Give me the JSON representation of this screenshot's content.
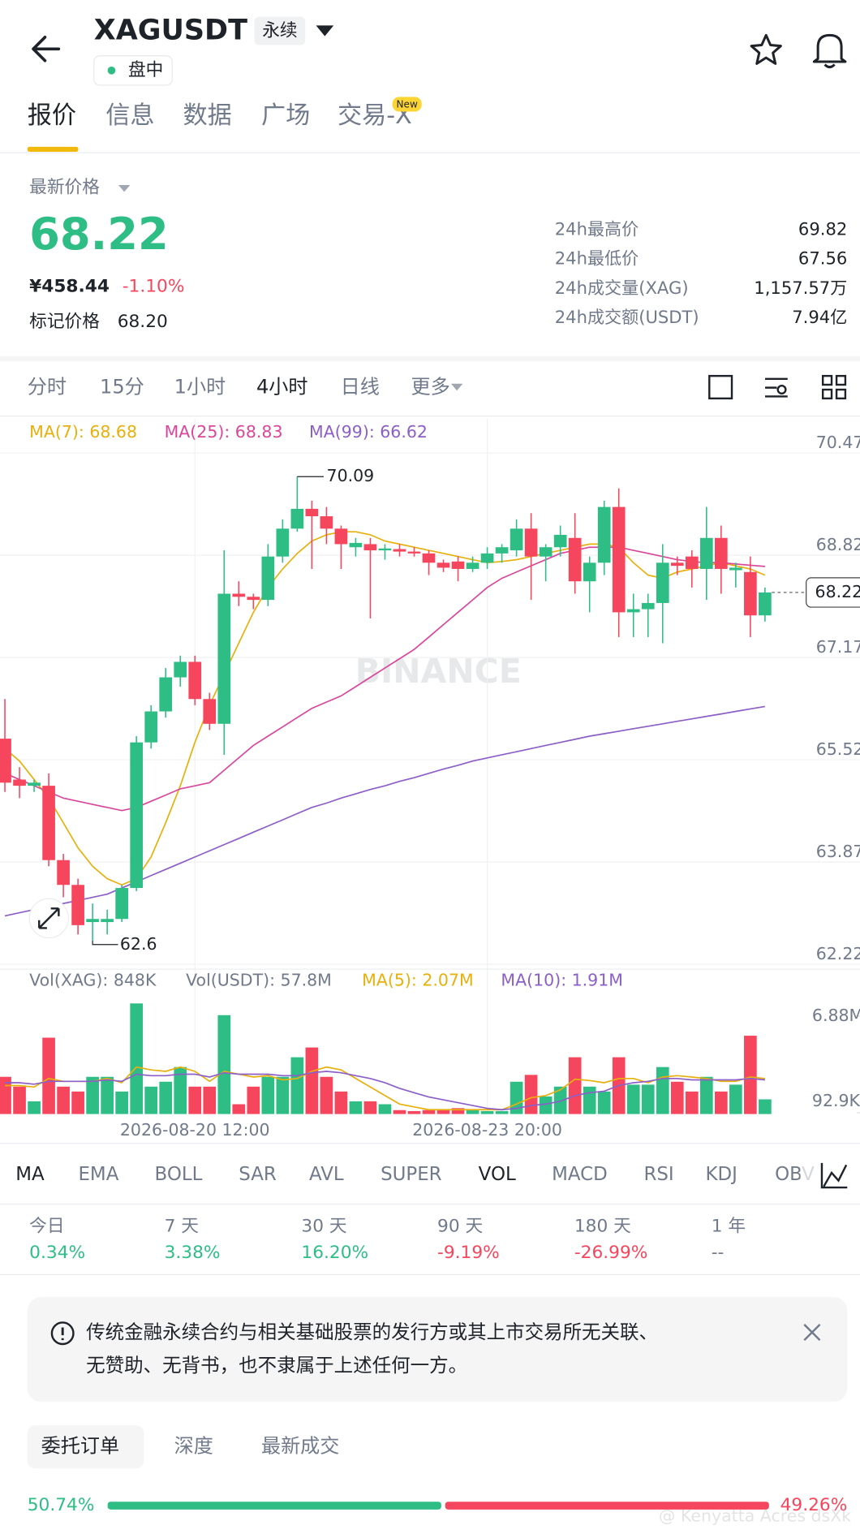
{
  "header": {
    "symbol": "XAGUSDT",
    "contract": "永续",
    "status": "盘中"
  },
  "tabs": {
    "items": [
      "报价",
      "信息",
      "数据",
      "广场",
      "交易-X"
    ],
    "active": 0,
    "badge": "New"
  },
  "price": {
    "label": "最新价格",
    "last": "68.22",
    "cny": "¥458.44",
    "change": "-1.10%",
    "mark_label": "标记价格",
    "mark": "68.20"
  },
  "stats": [
    {
      "label": "24h最高价",
      "value": "69.82"
    },
    {
      "label": "24h最低价",
      "value": "67.56"
    },
    {
      "label": "24h成交量(XAG)",
      "value": "1,157.57万"
    },
    {
      "label": "24h成交额(USDT)",
      "value": "7.94亿"
    }
  ],
  "intervals": {
    "items": [
      "分时",
      "15分",
      "1小时",
      "4小时",
      "日线",
      "更多"
    ],
    "active": 3
  },
  "chart_data": [
    {
      "type": "candlestick",
      "watermark": "BINANCE",
      "up_color": "#2ebd85",
      "down_color": "#f6465d",
      "ylim": [
        62.14,
        71.02
      ],
      "yticks": [
        70.47,
        68.82,
        67.17,
        65.52,
        63.87,
        62.22
      ],
      "grid": true,
      "categories": [
        null,
        null,
        null,
        null,
        null,
        null,
        null,
        null,
        null,
        null,
        null,
        null,
        null,
        "2026-08-20 12:00",
        null,
        null,
        null,
        null,
        null,
        null,
        null,
        null,
        null,
        null,
        null,
        null,
        null,
        null,
        null,
        null,
        null,
        null,
        null,
        "2026-08-23 20:00",
        null,
        null,
        null,
        null,
        null,
        null,
        null,
        null,
        null,
        null,
        null,
        null,
        null,
        null,
        null,
        null,
        null,
        null,
        null
      ],
      "open": [
        65.86,
        65.2,
        65.1,
        65.1,
        63.9,
        63.5,
        62.9,
        62.9,
        62.95,
        63.45,
        65.8,
        66.3,
        66.85,
        67.1,
        66.5,
        66.1,
        68.2,
        68.15,
        68.1,
        68.8,
        69.25,
        69.57,
        69.45,
        69.25,
        68.95,
        69.0,
        68.9,
        68.92,
        68.88,
        68.85,
        68.7,
        68.72,
        68.6,
        68.7,
        68.85,
        68.9,
        69.25,
        68.8,
        68.95,
        69.1,
        68.4,
        68.7,
        69.6,
        67.9,
        67.95,
        68.05,
        68.7,
        68.8,
        68.6,
        69.1,
        68.58,
        68.55,
        67.85
      ],
      "high": [
        66.5,
        65.4,
        65.2,
        65.3,
        64.0,
        63.6,
        63.2,
        63.1,
        63.5,
        65.9,
        66.4,
        67.0,
        67.2,
        67.2,
        66.6,
        68.9,
        68.4,
        68.2,
        69.0,
        69.4,
        70.09,
        69.7,
        69.6,
        69.3,
        69.1,
        69.1,
        69.0,
        69.0,
        68.95,
        68.9,
        68.75,
        68.8,
        68.8,
        68.95,
        69.0,
        69.4,
        69.5,
        69.0,
        69.3,
        69.5,
        68.8,
        69.7,
        69.9,
        68.2,
        68.2,
        69.0,
        68.8,
        68.9,
        69.6,
        69.3,
        68.7,
        68.8,
        68.3
      ],
      "low": [
        65.0,
        64.9,
        65.0,
        63.8,
        63.3,
        62.7,
        62.6,
        62.7,
        62.9,
        63.4,
        65.7,
        66.2,
        66.7,
        66.4,
        66.0,
        65.6,
        68.0,
        67.95,
        68.0,
        68.7,
        69.2,
        68.6,
        69.0,
        68.6,
        68.8,
        67.8,
        68.75,
        68.8,
        68.8,
        68.5,
        68.55,
        68.4,
        68.55,
        68.6,
        68.7,
        68.8,
        68.1,
        68.4,
        68.8,
        68.2,
        67.9,
        68.5,
        67.5,
        67.5,
        67.5,
        67.4,
        68.5,
        68.3,
        68.1,
        68.2,
        68.3,
        67.5,
        67.75
      ],
      "close": [
        65.15,
        65.1,
        65.15,
        63.9,
        63.5,
        62.85,
        62.95,
        62.95,
        63.45,
        65.8,
        66.3,
        66.85,
        67.1,
        66.5,
        66.1,
        68.2,
        68.15,
        68.1,
        68.8,
        69.25,
        69.57,
        69.45,
        69.25,
        69.0,
        69.02,
        68.9,
        68.93,
        68.88,
        68.85,
        68.7,
        68.62,
        68.6,
        68.7,
        68.85,
        68.95,
        69.25,
        68.8,
        68.95,
        69.15,
        68.4,
        68.7,
        69.6,
        67.9,
        67.95,
        68.05,
        68.7,
        68.65,
        68.6,
        69.1,
        68.6,
        68.62,
        67.85,
        68.22
      ],
      "series": [
        {
          "name": "MA(7): 68.68",
          "color": "#e8b00c",
          "values": [
            65.7,
            65.5,
            65.2,
            64.9,
            64.5,
            64.1,
            63.8,
            63.6,
            63.5,
            63.6,
            63.95,
            64.5,
            65.1,
            65.8,
            66.4,
            66.9,
            67.4,
            67.9,
            68.3,
            68.6,
            68.85,
            69.05,
            69.15,
            69.2,
            69.2,
            69.15,
            69.05,
            69.0,
            68.95,
            68.9,
            68.85,
            68.8,
            68.75,
            68.7,
            68.72,
            68.75,
            68.8,
            68.85,
            68.9,
            68.95,
            69.0,
            69.0,
            68.95,
            68.7,
            68.5,
            68.45,
            68.55,
            68.6,
            68.65,
            68.7,
            68.65,
            68.6,
            68.5
          ]
        },
        {
          "name": "MA(25): 68.83",
          "color": "#d9479c",
          "values": [
            65.3,
            65.2,
            65.1,
            65.0,
            64.9,
            64.85,
            64.8,
            64.75,
            64.7,
            64.75,
            64.85,
            64.95,
            65.05,
            65.1,
            65.15,
            65.35,
            65.55,
            65.75,
            65.9,
            66.05,
            66.2,
            66.35,
            66.45,
            66.55,
            66.7,
            66.85,
            67.0,
            67.15,
            67.3,
            67.5,
            67.7,
            67.9,
            68.1,
            68.3,
            68.45,
            68.55,
            68.65,
            68.75,
            68.85,
            68.9,
            68.95,
            68.95,
            68.95,
            68.9,
            68.85,
            68.8,
            68.75,
            68.72,
            68.7,
            68.7,
            68.68,
            68.66,
            68.64
          ]
        },
        {
          "name": "MA(99): 66.62",
          "color": "#8c5fc8",
          "values": [
            63.0,
            63.05,
            63.1,
            63.15,
            63.2,
            63.25,
            63.3,
            63.35,
            63.45,
            63.55,
            63.65,
            63.75,
            63.85,
            63.95,
            64.05,
            64.15,
            64.25,
            64.35,
            64.45,
            64.55,
            64.65,
            64.75,
            64.82,
            64.9,
            64.97,
            65.04,
            65.1,
            65.17,
            65.23,
            65.3,
            65.37,
            65.43,
            65.5,
            65.55,
            65.6,
            65.65,
            65.7,
            65.75,
            65.8,
            65.85,
            65.9,
            65.94,
            65.98,
            66.02,
            66.06,
            66.1,
            66.14,
            66.18,
            66.22,
            66.26,
            66.3,
            66.34,
            66.38
          ]
        }
      ]
    },
    {
      "type": "bar",
      "ylim": [
        0,
        8325000
      ],
      "yticks": [
        {
          "value": 6880000,
          "label": "6.88M"
        },
        {
          "value": 92900,
          "label": "92.9K"
        }
      ],
      "legend_note": "Vol(USDT): 57.8M",
      "series": [
        {
          "name": "Vol(XAG): 848K",
          "color": "#707a8a",
          "values": [
            2614000,
            1926000,
            894000,
            5366000,
            1926000,
            1582000,
            2614000,
            2614000,
            1582000,
            7774000,
            1926000,
            2270000,
            3302000,
            1926000,
            1926000,
            6949000,
            688000,
            1926000,
            2614000,
            2614000,
            3990000,
            4678000,
            2614000,
            1582000,
            894000,
            894000,
            688000,
            275000,
            206000,
            275000,
            344000,
            413000,
            275000,
            206000,
            206000,
            2270000,
            2752000,
            1238000,
            1926000,
            3990000,
            1926000,
            1582000,
            3990000,
            2064000,
            2064000,
            3302000,
            2270000,
            1582000,
            2614000,
            1582000,
            2064000,
            5504000,
            1032000
          ]
        },
        {
          "name": "MA(5): 2.07M",
          "color": "#e8b00c",
          "values": [
            2000000,
            2000000,
            1900000,
            2500000,
            2300000,
            2300000,
            2300000,
            2500000,
            2200000,
            3300000,
            3100000,
            3000000,
            3300000,
            3000000,
            2300000,
            3000000,
            2800000,
            2600000,
            2700000,
            2400000,
            2500000,
            3000000,
            3300000,
            3100000,
            2500000,
            1900000,
            1300000,
            700000,
            500000,
            300000,
            300000,
            300000,
            300000,
            300000,
            300000,
            700000,
            1150000,
            1300000,
            1700000,
            2450000,
            2350000,
            2200000,
            2500000,
            2500000,
            2200000,
            2600000,
            2700000,
            2600000,
            2500000,
            2300000,
            2300000,
            2600000,
            2500000
          ]
        },
        {
          "name": "MA(10): 1.91M",
          "color": "#8c5fc8",
          "values": [
            2200000,
            2200000,
            2100000,
            2300000,
            2300000,
            2300000,
            2300000,
            2400000,
            2300000,
            2800000,
            2700000,
            2700000,
            2800000,
            2800000,
            2600000,
            2900000,
            2800000,
            2800000,
            2800000,
            2700000,
            2700000,
            2900000,
            3000000,
            2900000,
            2700000,
            2500000,
            2200000,
            1800000,
            1500000,
            1200000,
            1000000,
            800000,
            600000,
            400000,
            300000,
            400000,
            600000,
            700000,
            900000,
            1300000,
            1500000,
            1600000,
            2000000,
            2200000,
            2300000,
            2500000,
            2500000,
            2400000,
            2400000,
            2400000,
            2400000,
            2500000,
            2400000
          ]
        }
      ]
    }
  ],
  "indicators": {
    "items": [
      "MA",
      "EMA",
      "BOLL",
      "SAR",
      "AVL",
      "SUPER",
      "VOL",
      "MACD",
      "RSI",
      "KDJ",
      "OBV"
    ],
    "active": [
      0,
      6
    ]
  },
  "performance": [
    {
      "period": "今日",
      "value": "0.34%"
    },
    {
      "period": "7 天",
      "value": "3.38%"
    },
    {
      "period": "30 天",
      "value": "16.20%"
    },
    {
      "period": "90 天",
      "value": "-9.19%"
    },
    {
      "period": "180 天",
      "value": "-26.99%"
    },
    {
      "period": "1 年",
      "value": "--"
    }
  ],
  "notice": [
    "传统金融永续合约与相关基础股票的发行方或其上市交易所无关联、",
    "无赞助、无背书，也不隶属于上述任何一方。"
  ],
  "order_tabs": {
    "items": [
      "委托订单",
      "深度",
      "最新成交"
    ],
    "active": 0
  },
  "ratio": {
    "buy": 50.74,
    "sell": 49.26,
    "buy_label": "50.74%",
    "sell_label": "49.26%"
  },
  "watermark": "@ Kenyatta Acres dsXk"
}
